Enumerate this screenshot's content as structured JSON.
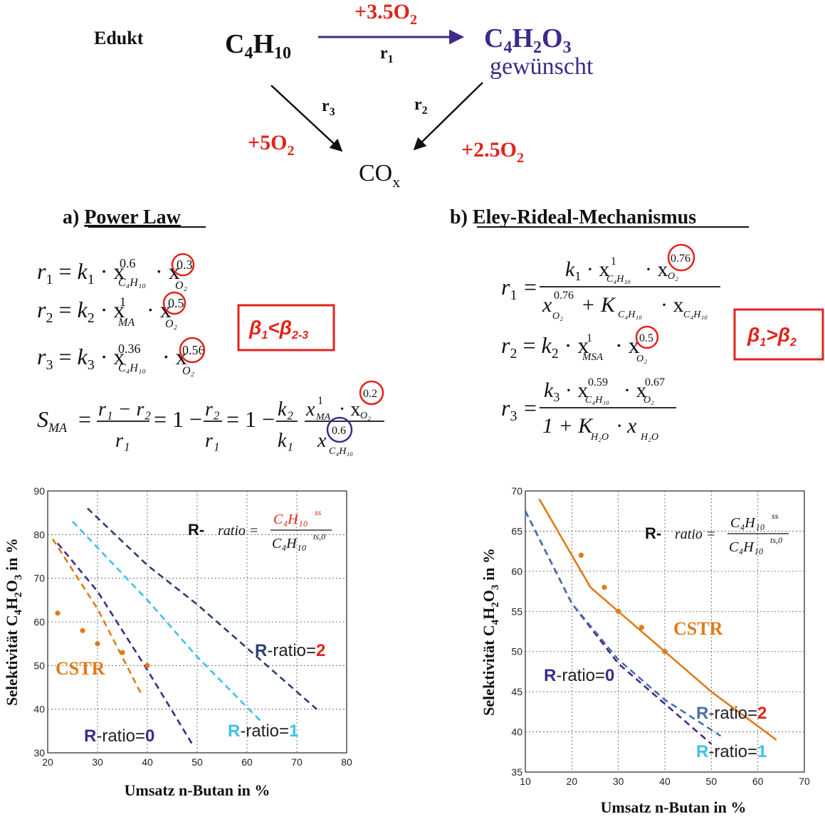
{
  "scheme": {
    "edukt_label": "Edukt",
    "reactant": {
      "main": "C",
      "sub1": "4",
      "mid": "H",
      "sub2": "10"
    },
    "product": {
      "main": "C",
      "sub1": "4",
      "mid": "H",
      "sub2": "2",
      "mid2": "O",
      "sub3": "3"
    },
    "product_note": "gewünscht",
    "byproduct": {
      "main": "CO",
      "sub": "x"
    },
    "o2_r1": {
      "coef": "+3.5O",
      "sub": "2"
    },
    "o2_r3": {
      "coef": "+5O",
      "sub": "2"
    },
    "o2_r2": {
      "coef": "+2.5O",
      "sub": "2"
    },
    "r1": {
      "main": "r",
      "sub": "1"
    },
    "r2": {
      "main": "r",
      "sub": "2"
    },
    "r3": {
      "main": "r",
      "sub": "3"
    }
  },
  "section_a": {
    "prefix": "a) ",
    "title": "Power Law",
    "beta_box": {
      "b1": "β",
      "s1": "1",
      "op": "<",
      "b2": "β",
      "s2": "2-3"
    },
    "eq1": {
      "lhs": "r",
      "lhs_sub": "1",
      "k": "k",
      "k_sub": "1",
      "e1": "0.6",
      "s1": "C₄H₁₀",
      "e2": "0.3",
      "s2": "O₂"
    },
    "eq2": {
      "lhs": "r",
      "lhs_sub": "2",
      "k": "k",
      "k_sub": "2",
      "e1": "1",
      "s1": "MA",
      "e2": "0.5",
      "s2": "O₂"
    },
    "eq3": {
      "lhs": "r",
      "lhs_sub": "3",
      "k": "k",
      "k_sub": "3",
      "e1": "0.36",
      "s1": "C₄H₁₀",
      "e2": "0.56",
      "s2": "O₂"
    },
    "sel": {
      "lhs": "S",
      "lhs_sub": "MA",
      "num1": "r₁ − r₂",
      "den1": "r₁",
      "eq1": "= 1 −",
      "num2": "r₂",
      "den2": "r₁",
      "eq2": "= 1 −",
      "kn": "k₂",
      "kd": "k₁",
      "xn_e": "1",
      "xn_s": "MA",
      "xo_e": "0.2",
      "xo_s": "O₂",
      "xd_e": "0.6",
      "xd_s": "C₄H₁₀"
    }
  },
  "section_b": {
    "prefix": "b) ",
    "title": "Eley-Rideal-Mechanismus",
    "beta_box": {
      "b1": "β",
      "s1": "1",
      "op": ">",
      "b2": "β",
      "s2": "2"
    },
    "eq1": {
      "lhs": "r",
      "lhs_sub": "1",
      "k": "k",
      "k_sub": "1",
      "e1": "1",
      "s1": "C₄H₁₀",
      "e2": "0.76",
      "s2": "O₂",
      "den_e": "0.76",
      "den_s": "O₂",
      "den_K": "K",
      "den_Ks": "C₄H₁₀",
      "den_x": "C₄H₁₀"
    },
    "eq2": {
      "lhs": "r",
      "lhs_sub": "2",
      "k": "k",
      "k_sub": "2",
      "e1": "1",
      "s1": "MSA",
      "e2": "0.5",
      "s2": "O₂"
    },
    "eq3": {
      "lhs": "r",
      "lhs_sub": "3",
      "k": "k",
      "k_sub": "3",
      "e1": "0.59",
      "s1": "C₄H₁₀",
      "e2": "0.67",
      "s2": "O₂",
      "den": "1 + K",
      "den_s": "H₂O",
      "den_x": "H₂O"
    }
  },
  "colors": {
    "red": "#e3231b",
    "purple": "#3d2a8c",
    "orange": "#e07b17",
    "navy": "#2b3f6e",
    "blue": "#4a6fa8",
    "cyan": "#3ec1e6",
    "black": "#111111",
    "grid": "#555555"
  },
  "chart_data": [
    {
      "type": "line",
      "xlabel": "Umsatz n-Butan in %",
      "ylabel": {
        "pre": "Selektivität C",
        "s1": "4",
        "m": "H",
        "s2": "2",
        "m2": "O",
        "s3": "3",
        "post": " in %"
      },
      "xlim": [
        20,
        80
      ],
      "ylim": [
        30,
        90
      ],
      "xticks": [
        "20",
        "30",
        "40",
        "50",
        "60",
        "70",
        "80"
      ],
      "yticks": [
        "30",
        "40",
        "50",
        "60",
        "70",
        "80",
        "90"
      ],
      "grid": true,
      "ratio_label": {
        "r": "R-",
        "ratio": "ratio",
        "eq": "=",
        "num": "C₄H₁₀",
        "num_sup": "ss",
        "den": "C₄H₁₀",
        "den_sup": "ts,0"
      },
      "series": [
        {
          "name": "R-ratio=0",
          "label_r": "R",
          "label_rest": "-ratio=",
          "label_val": "0",
          "style": "dashed",
          "color": "purple",
          "val_color": "purple",
          "x": [
            22,
            30,
            40,
            49
          ],
          "y": [
            78,
            67,
            49,
            32
          ]
        },
        {
          "name": "R-ratio=1",
          "label_r": "R",
          "label_rest": "-ratio=",
          "label_val": "1",
          "style": "dashed",
          "color": "cyan",
          "val_color": "cyan",
          "x": [
            25,
            40,
            50,
            63
          ],
          "y": [
            83,
            65,
            52,
            37
          ]
        },
        {
          "name": "R-ratio=2",
          "label_r": "R",
          "label_rest": "-ratio=",
          "label_val": "2",
          "style": "dashed",
          "color": "navy",
          "val_color": "red",
          "x": [
            28,
            40,
            50,
            60,
            74
          ],
          "y": [
            86,
            73,
            64,
            54,
            40
          ]
        },
        {
          "name": "",
          "style": "dashed",
          "color": "orange",
          "x": [
            21,
            30,
            39
          ],
          "y": [
            79,
            63,
            43
          ]
        },
        {
          "name": "CSTR",
          "style": "points",
          "color": "orange",
          "x": [
            22,
            27,
            30,
            35,
            40
          ],
          "y": [
            62,
            58,
            55,
            53,
            50
          ]
        }
      ]
    },
    {
      "type": "line",
      "xlabel": "Umsatz n-Butan in %",
      "ylabel": {
        "pre": "Selektivität C",
        "s1": "4",
        "m": "H",
        "s2": "2",
        "m2": "O",
        "s3": "3",
        "post": " in %"
      },
      "xlim": [
        10,
        70
      ],
      "ylim": [
        35,
        70
      ],
      "xticks": [
        "10",
        "20",
        "30",
        "40",
        "50",
        "60",
        "70"
      ],
      "yticks": [
        "35",
        "40",
        "45",
        "50",
        "55",
        "60",
        "65",
        "70"
      ],
      "grid": true,
      "ratio_label": {
        "r": "R-",
        "ratio": "ratio",
        "eq": "=",
        "num": "C₄H₁₀",
        "num_sup": "ss",
        "den": "C₄H₁₀",
        "den_sup": "ts,0"
      },
      "series": [
        {
          "name": "CSTR",
          "style": "solid",
          "color": "orange",
          "x": [
            13,
            20,
            24,
            30,
            40,
            50,
            64
          ],
          "y": [
            69,
            62,
            58,
            55,
            50,
            45,
            39
          ]
        },
        {
          "name": "",
          "style": "points",
          "color": "orange",
          "x": [
            22,
            27,
            30,
            35,
            40
          ],
          "y": [
            62,
            58,
            55,
            53,
            50
          ]
        },
        {
          "name": "R-ratio=0",
          "label_r": "R",
          "label_rest": "-ratio=",
          "label_val": "0",
          "style": "dashed",
          "color": "purple",
          "val_color": "purple",
          "x": [
            10,
            20,
            30,
            40,
            50
          ],
          "y": [
            67.5,
            56,
            48.5,
            43.5,
            38.5
          ]
        },
        {
          "name": "R-ratio=2",
          "label_r": "R",
          "label_rest": "-ratio=",
          "label_val": "2",
          "style": "dashed",
          "color": "blue",
          "val_color": "red",
          "x": [
            10,
            20,
            30,
            40,
            52
          ],
          "y": [
            67.5,
            56,
            49,
            44,
            39.5
          ]
        },
        {
          "name": "R-ratio=1",
          "label_r": "R",
          "label_rest": "-ratio=",
          "label_val": "1",
          "style": "dashed",
          "color": "cyan",
          "val_color": "cyan",
          "x": [],
          "y": []
        }
      ]
    }
  ]
}
